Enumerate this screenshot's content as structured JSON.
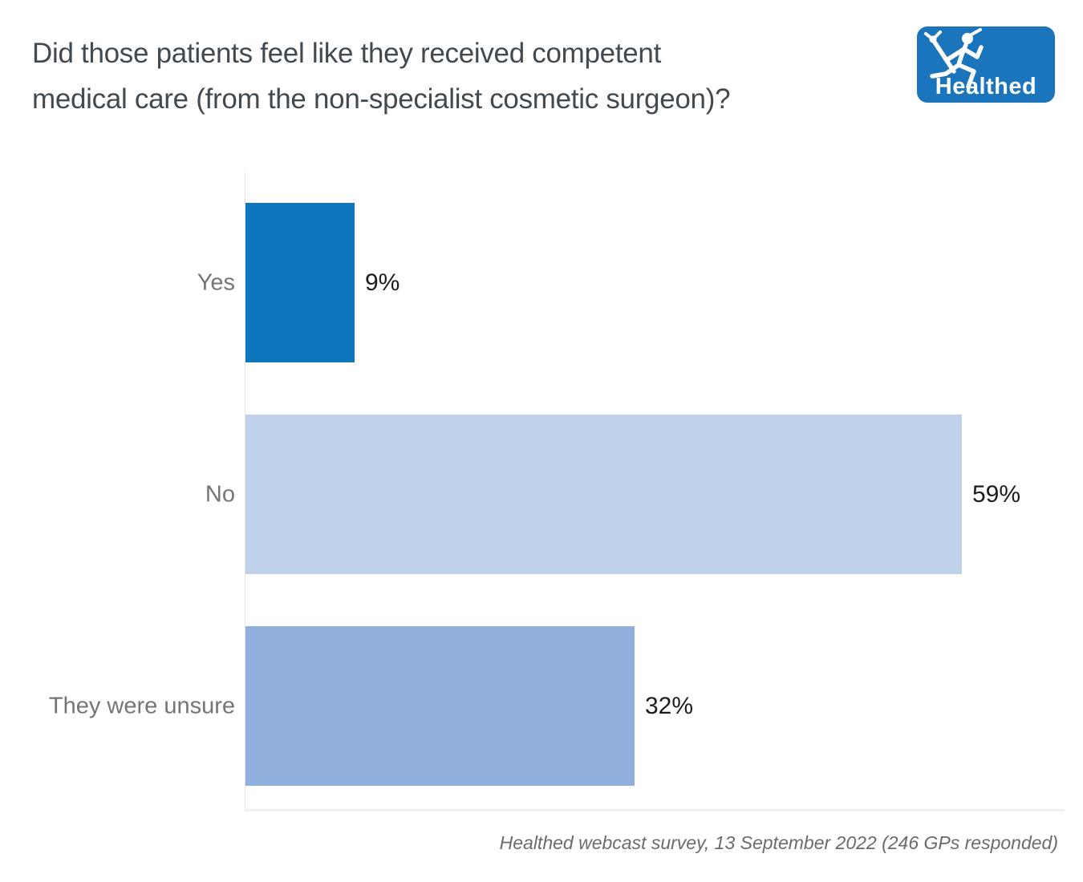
{
  "title": {
    "lines": [
      "Did those patients feel like they received competent",
      "medical care (from the non-specialist cosmetic surgeon)?"
    ]
  },
  "logo": {
    "wordmark": "Healthed",
    "icon": "hermes-runner-icon",
    "bg_color": "#1a75bc"
  },
  "chart_data": {
    "type": "bar",
    "orientation": "horizontal",
    "title": "Did those patients feel like they received competent medical care (from the non-specialist cosmetic surgeon)?",
    "categories": [
      "Yes",
      "No",
      "They were unsure"
    ],
    "values": [
      9,
      59,
      32
    ],
    "value_labels": [
      "9%",
      "59%",
      "32%"
    ],
    "bar_colors": [
      "#0d76bc",
      "#c0d1ea",
      "#91afdc"
    ],
    "xlabel": "",
    "ylabel": "",
    "xlim": [
      0,
      67.5
    ],
    "grid": false,
    "legend": "none",
    "value_label_position": "outside-end"
  },
  "footer": {
    "source_note": "Healthed webcast survey, 13 September 2022 (246 GPs responded)"
  }
}
